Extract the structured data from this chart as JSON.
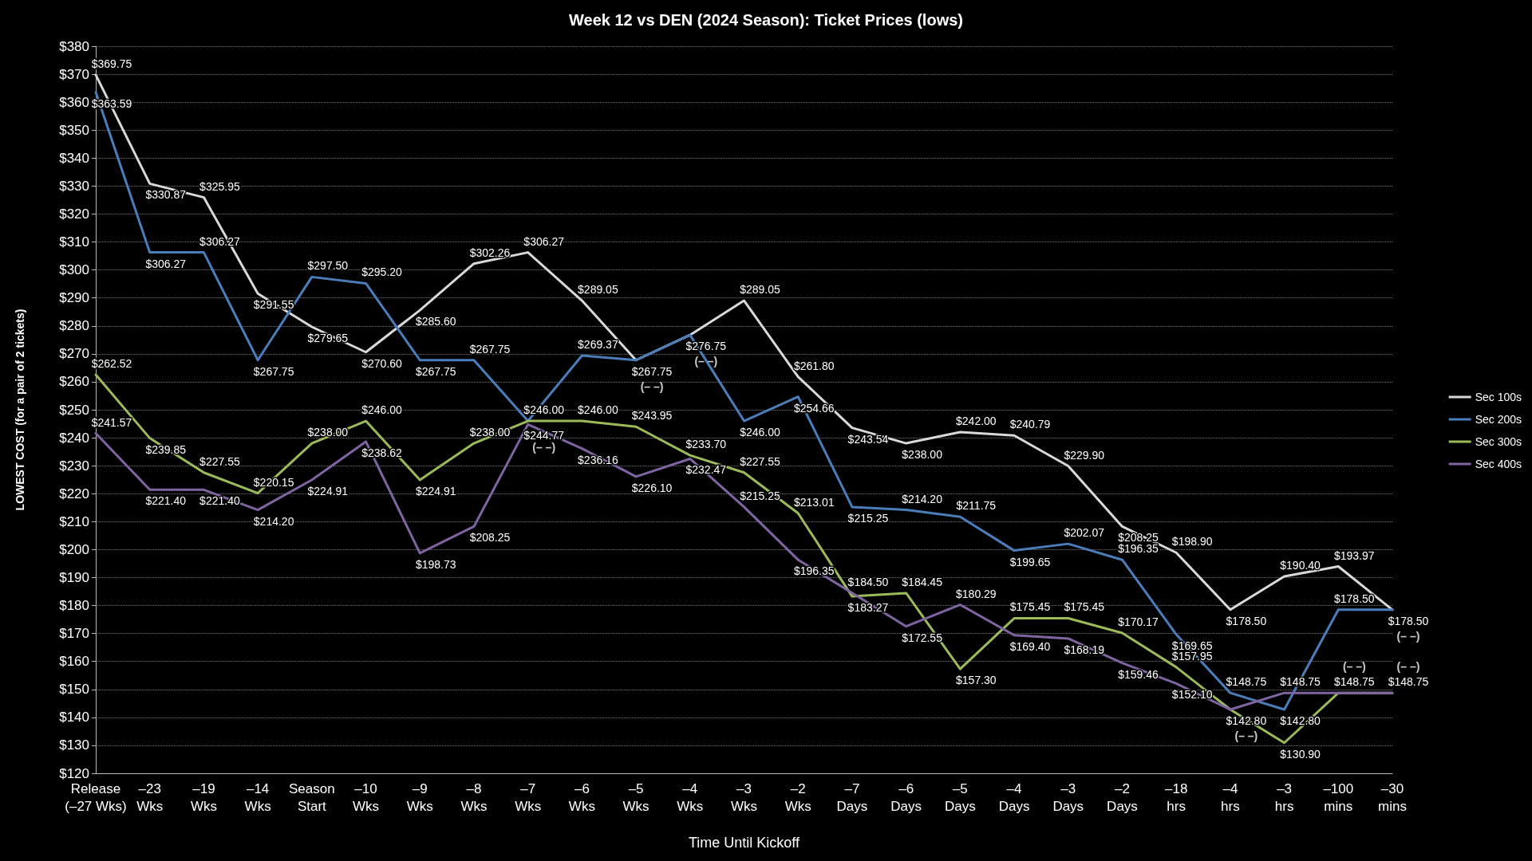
{
  "chart_data": {
    "type": "line",
    "title": "Week 12 vs DEN (2024 Season): Ticket Prices (lows)",
    "xlabel": "Time Until Kickoff",
    "ylabel": "LOWEST COST (for a pair of 2 tickets)",
    "categories": [
      "Release\n(–27 Wks)",
      "–23\nWks",
      "–19\nWks",
      "–14\nWks",
      "Season\nStart",
      "–10\nWks",
      "–9\nWks",
      "–8\nWks",
      "–7\nWks",
      "–6\nWks",
      "–5\nWks",
      "–4\nWks",
      "–3\nWks",
      "–2\nWks",
      "–7\nDays",
      "–6\nDays",
      "–5\nDays",
      "–4\nDays",
      "–3\nDays",
      "–2\nDays",
      "–18\nhrs",
      "–4\nhrs",
      "–3\nhrs",
      "–100\nmins",
      "–30\nmins"
    ],
    "series": [
      {
        "name": "Sec 100s",
        "color": "#d9d9d9",
        "values": [
          369.75,
          330.87,
          325.95,
          291.55,
          279.65,
          270.6,
          285.6,
          302.26,
          306.27,
          289.05,
          267.75,
          276.75,
          289.05,
          261.8,
          243.54,
          238.0,
          242.0,
          240.79,
          229.9,
          208.25,
          198.9,
          178.5,
          190.4,
          193.97,
          178.5
        ],
        "value_labels": [
          "$369.75",
          "$330.87",
          "$325.95",
          "$291.55",
          "$279.65",
          "$270.60",
          "$285.60",
          "$302.26",
          "$306.27",
          "$289.05",
          "$267.75",
          "$276.75",
          "$289.05",
          "$261.80",
          "$243.54",
          "$238.00",
          "$242.00",
          "$240.79",
          "$229.90",
          "$208.25",
          "$198.90",
          "$178.50",
          "$190.40",
          "$193.97",
          "$178.50"
        ]
      },
      {
        "name": "Sec 200s",
        "color": "#4a7ebb",
        "values": [
          363.59,
          306.27,
          306.27,
          267.75,
          297.5,
          295.2,
          267.75,
          267.75,
          246.0,
          269.37,
          267.75,
          276.75,
          246.0,
          254.66,
          215.25,
          214.2,
          211.75,
          199.65,
          202.07,
          196.35,
          169.65,
          148.75,
          142.8,
          178.5,
          178.5
        ],
        "value_labels": [
          "$363.59",
          "$306.27",
          "$306.27",
          "$267.75",
          "$297.50",
          "$295.20",
          "$267.75",
          "$267.75",
          "$246.00",
          "$269.37",
          null,
          null,
          "$246.00",
          "$254.66",
          "$215.25",
          "$214.20",
          "$211.75",
          "$199.65",
          "$202.07",
          "$196.35",
          "$169.65",
          "$148.75",
          "$142.80",
          "$178.50",
          null
        ]
      },
      {
        "name": "Sec 300s",
        "color": "#9bbb59",
        "values": [
          262.52,
          239.85,
          227.55,
          220.15,
          238.0,
          246.0,
          224.91,
          238.0,
          246.0,
          246.0,
          243.95,
          233.7,
          227.55,
          213.01,
          183.27,
          184.45,
          157.3,
          175.45,
          175.45,
          170.17,
          157.95,
          142.8,
          130.9,
          148.75,
          148.75
        ],
        "value_labels": [
          "$262.52",
          "$239.85",
          "$227.55",
          "$220.15",
          "$238.00",
          "$246.00",
          "$224.91",
          "$238.00",
          null,
          "$246.00",
          "$243.95",
          "$233.70",
          "$227.55",
          "$213.01",
          "$183.27",
          "$184.45",
          "$157.30",
          "$175.45",
          "$175.45",
          "$170.17",
          "$157.95",
          "$142.80",
          "$130.90",
          "$148.75",
          "$148.75"
        ]
      },
      {
        "name": "Sec 400s",
        "color": "#8064a2",
        "values": [
          241.57,
          221.4,
          221.4,
          214.2,
          224.91,
          238.62,
          198.73,
          208.25,
          244.77,
          236.16,
          226.1,
          232.47,
          215.25,
          196.35,
          184.5,
          172.55,
          180.29,
          169.4,
          168.19,
          159.46,
          152.1,
          142.8,
          148.75,
          148.75,
          148.75
        ],
        "value_labels": [
          "$241.57",
          "$221.40",
          "$221.40",
          "$214.20",
          "$224.91",
          "$238.62",
          "$198.73",
          "$208.25",
          "$244.77",
          "$236.16",
          "$226.10",
          "$232.47",
          "$215.25",
          "$196.35",
          "$184.50",
          "$172.55",
          "$180.29",
          "$169.40",
          "$168.19",
          "$159.46",
          "$152.10",
          null,
          "$148.75",
          null,
          null
        ]
      }
    ],
    "annotations": [
      {
        "text": "(– –)",
        "x": "–7\nWks",
        "y": 246.0
      },
      {
        "text": "(– –)",
        "x": "–5\nWks",
        "y": 267.75
      },
      {
        "text": "(– –)",
        "x": "–4\nWks",
        "y": 276.75
      },
      {
        "text": "(– –)",
        "x": "–4\nhrs",
        "y": 142.8
      },
      {
        "text": "(– –)",
        "x": "–100\nmins",
        "y": 148.75
      },
      {
        "text": "(– –)",
        "x": "–30\nmins",
        "y": 178.5
      },
      {
        "text": "(– –)",
        "x": "–30\nmins",
        "y": 148.75
      }
    ],
    "ylim": [
      120,
      380
    ],
    "yticks": [
      {
        "value": 120,
        "label": "$120"
      },
      {
        "value": 130,
        "label": "$130"
      },
      {
        "value": 140,
        "label": "$140"
      },
      {
        "value": 150,
        "label": "$150"
      },
      {
        "value": 160,
        "label": "$160"
      },
      {
        "value": 170,
        "label": "$170"
      },
      {
        "value": 180,
        "label": "$180"
      },
      {
        "value": 190,
        "label": "$190"
      },
      {
        "value": 200,
        "label": "$200"
      },
      {
        "value": 210,
        "label": "$210"
      },
      {
        "value": 220,
        "label": "$220"
      },
      {
        "value": 230,
        "label": "$230"
      },
      {
        "value": 240,
        "label": "$240"
      },
      {
        "value": 250,
        "label": "$250"
      },
      {
        "value": 260,
        "label": "$260"
      },
      {
        "value": 270,
        "label": "$270"
      },
      {
        "value": 280,
        "label": "$280"
      },
      {
        "value": 290,
        "label": "$290"
      },
      {
        "value": 300,
        "label": "$300"
      },
      {
        "value": 310,
        "label": "$310"
      },
      {
        "value": 320,
        "label": "$320"
      },
      {
        "value": 330,
        "label": "$330"
      },
      {
        "value": 340,
        "label": "$340"
      },
      {
        "value": 350,
        "label": "$350"
      },
      {
        "value": 360,
        "label": "$360"
      },
      {
        "value": 370,
        "label": "$370"
      },
      {
        "value": 380,
        "label": "$380"
      }
    ],
    "grid": "y",
    "legend": "right",
    "marker": "none",
    "line_style": "solid"
  }
}
